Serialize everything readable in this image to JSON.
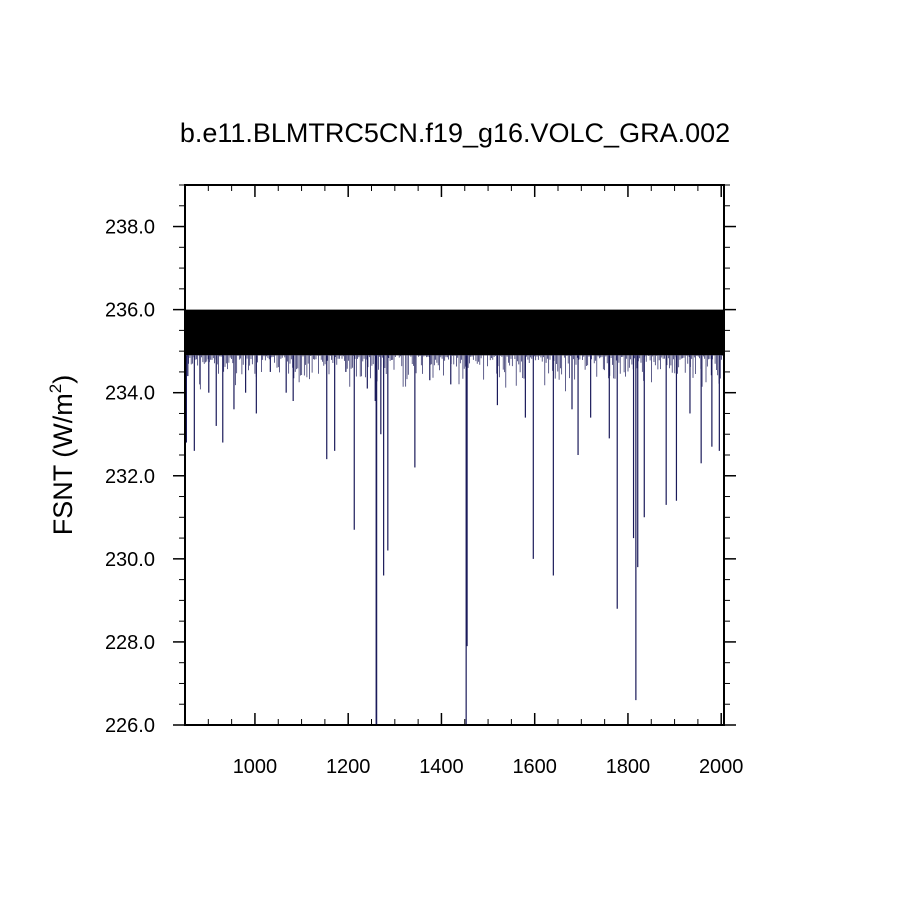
{
  "chart_data": {
    "type": "line",
    "title": "b.e11.BLMTRC5CN.f19_g16.VOLC_GRA.002",
    "ylabel_main": "FSNT (W/m",
    "ylabel_sup": "2",
    "ylabel_close": ")",
    "xlabel": "",
    "xlim": [
      850,
      2006
    ],
    "ylim": [
      226.0,
      239.0
    ],
    "x_ticks": [
      1000,
      1200,
      1400,
      1600,
      1800,
      2000
    ],
    "x_tick_labels": [
      "1000",
      "1200",
      "1400",
      "1600",
      "1800",
      "2000"
    ],
    "y_ticks": [
      226.0,
      228.0,
      230.0,
      232.0,
      234.0,
      236.0,
      238.0
    ],
    "y_tick_labels": [
      "226.0",
      "228.0",
      "230.0",
      "232.0",
      "234.0",
      "236.0",
      "238.0"
    ],
    "series": [
      {
        "color": "#1a1a5a",
        "baseline_band": [
          234.9,
          236.0
        ],
        "x": [
          850,
          853,
          856,
          870,
          882,
          901,
          917,
          931,
          955,
          980,
          1003,
          1033,
          1067,
          1082,
          1154,
          1171,
          1195,
          1213,
          1241,
          1258,
          1260,
          1261,
          1270,
          1276,
          1285,
          1343,
          1375,
          1420,
          1453,
          1455,
          1520,
          1580,
          1597,
          1640,
          1680,
          1693,
          1720,
          1760,
          1777,
          1812,
          1817,
          1821,
          1835,
          1882,
          1904,
          1933,
          1957,
          1980,
          1996,
          2006
        ],
        "values": [
          235.2,
          232.8,
          234.4,
          232.6,
          234.2,
          234.0,
          233.2,
          232.8,
          233.6,
          234.0,
          233.5,
          234.5,
          234.0,
          233.8,
          232.4,
          232.6,
          234.5,
          230.7,
          234.1,
          233.8,
          226.0,
          226.0,
          233.0,
          229.6,
          230.2,
          232.2,
          234.3,
          234.2,
          226.0,
          227.9,
          233.7,
          233.4,
          230.0,
          229.6,
          233.6,
          232.5,
          233.4,
          232.9,
          228.8,
          230.5,
          226.6,
          229.8,
          231.0,
          231.3,
          231.4,
          233.5,
          232.3,
          232.7,
          232.6,
          234.3
        ]
      }
    ]
  }
}
